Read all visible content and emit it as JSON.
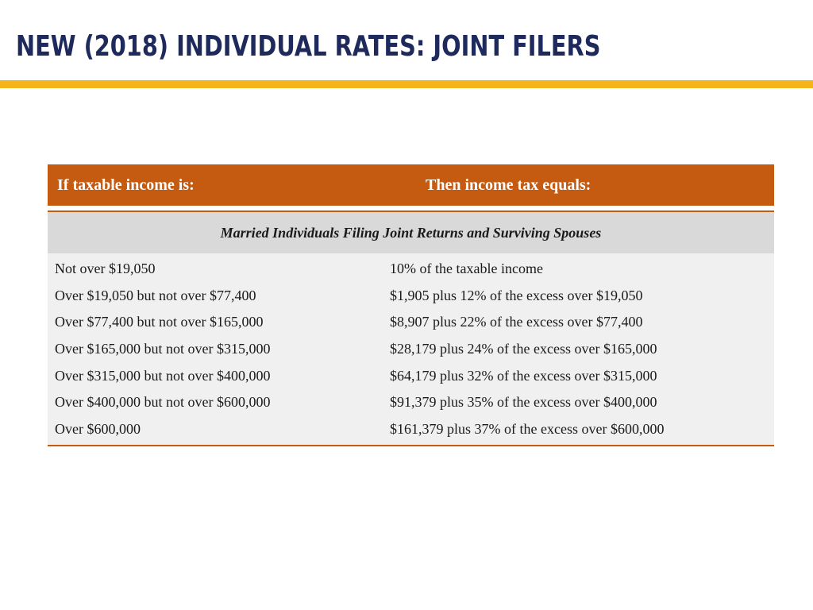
{
  "slide": {
    "title": "NEW (2018) INDIVIDUAL RATES: JOINT FILERS"
  },
  "colors": {
    "title": "#1f2a5c",
    "accent_rule": "#f5b41a",
    "table_header": "#c55a11",
    "section_band": "#d9d9d9",
    "row_background": "#f0f0f0"
  },
  "table": {
    "header_left": "If taxable income is:",
    "header_right": "Then income tax equals:",
    "section_label": "Married Individuals Filing Joint Returns and Surviving Spouses",
    "rows": [
      {
        "income": "Not over $19,050",
        "tax": "10% of the taxable income"
      },
      {
        "income": "Over $19,050 but not over $77,400",
        "tax": "$1,905 plus 12% of the excess over $19,050"
      },
      {
        "income": "Over $77,400 but not over $165,000",
        "tax": "$8,907 plus 22% of the excess over $77,400"
      },
      {
        "income": "Over $165,000 but not over $315,000",
        "tax": "$28,179 plus 24% of the excess over $165,000"
      },
      {
        "income": "Over $315,000 but not over $400,000",
        "tax": "$64,179 plus 32% of the excess over $315,000"
      },
      {
        "income": "Over $400,000 but not over $600,000",
        "tax": "$91,379 plus 35% of the excess over $400,000"
      },
      {
        "income": "Over $600,000",
        "tax": "$161,379 plus 37% of the excess over $600,000"
      }
    ]
  }
}
